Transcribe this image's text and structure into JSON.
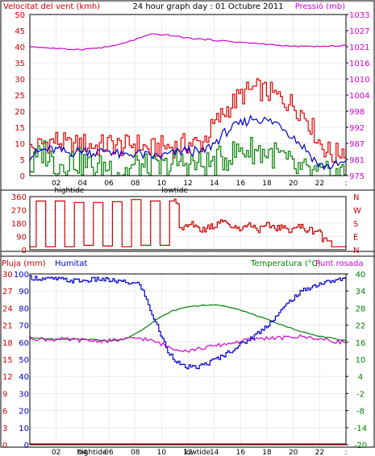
{
  "colors": {
    "background": "#ffffff",
    "border": "#000000",
    "grid": "#c0c0c0",
    "wind_max": "#e00000",
    "wind_avg": "#0000cc",
    "wind_min": "#008000",
    "pressure": "#d000d0",
    "direction": "#cc0000",
    "rain": "#cc0000",
    "humidity": "#0000cc",
    "temperature": "#008000",
    "dewpoint": "#d000d0",
    "left_axis_red": "#cc0000",
    "left_axis_blue": "#0000cc",
    "right_axis_green": "#008000"
  },
  "chart_data": [
    {
      "type": "line",
      "title": "24 hour graph day : 01 Octubre 2011",
      "left_axis_label": "Velocitat del vent (kmh)",
      "right_axis_label": "Pressió (mb)",
      "y_ticks": [
        "50",
        "45",
        "40",
        "35",
        "30",
        "25",
        "20",
        "15",
        "10",
        "5",
        "0"
      ],
      "y2_ticks": [
        "1033",
        "1027",
        "1021",
        "1016",
        "1010",
        "1004",
        "998",
        "992",
        "987",
        "981",
        "975"
      ],
      "ylim": [
        0,
        50
      ],
      "y2lim": [
        975,
        1033
      ],
      "x_ticks": [
        "02",
        "04",
        "06",
        "08",
        "10",
        "12",
        "14",
        "16",
        "18",
        "20",
        "22",
        ":"
      ],
      "x_tide_labels": [
        {
          "hour": 3,
          "text": "hightide"
        },
        {
          "hour": 11,
          "text": "lowtide"
        }
      ],
      "grid": true,
      "series": [
        {
          "key": "max",
          "values": [
            8,
            10,
            11,
            9,
            10,
            9,
            10,
            9,
            10,
            8,
            9,
            9,
            10,
            10,
            16,
            21,
            25,
            27,
            26,
            24,
            22,
            18,
            10,
            6,
            9
          ]
        },
        {
          "key": "avg",
          "values": [
            6,
            8,
            8,
            7,
            8,
            7,
            8,
            6,
            7,
            6,
            6,
            7,
            8,
            7,
            10,
            14,
            16,
            18,
            17,
            16,
            12,
            8,
            3,
            3,
            4
          ]
        },
        {
          "key": "min",
          "values": [
            2,
            8,
            3,
            5,
            4,
            2,
            3,
            1,
            3,
            2,
            2,
            4,
            4,
            3,
            4,
            6,
            8,
            8,
            7,
            6,
            2,
            1,
            0,
            0,
            1
          ]
        },
        {
          "key": "pressure",
          "values": [
            1021.5,
            1021,
            1020.5,
            1020.5,
            1021,
            1022,
            1024,
            1026,
            1025.5,
            1024.5,
            1024,
            1023.5,
            1023,
            1022.5,
            1022,
            1021.5,
            1021.5,
            1021.5,
            1022
          ]
        }
      ]
    },
    {
      "type": "line",
      "left_axis_ticks": [
        "360",
        "270",
        "180",
        "90",
        "0"
      ],
      "right_axis_letters": [
        "N",
        "W",
        "S",
        "E",
        "N"
      ],
      "ylim": [
        0,
        360
      ],
      "grid": true,
      "series": [
        {
          "key": "direction",
          "values": [
            20,
            330,
            20,
            330,
            20,
            320,
            30,
            320,
            25,
            325,
            20,
            340,
            30,
            330,
            30,
            330,
            150,
            170,
            140,
            160,
            200,
            160,
            150,
            170,
            140,
            160,
            150,
            140,
            155,
            135,
            130,
            60,
            20,
            20
          ]
        }
      ]
    },
    {
      "type": "line",
      "left_label_1": "Pluja (mm)",
      "left_label_2": "Humitat",
      "right_label_1": "Temperatura (°C)",
      "right_label_2": "Punt rosada",
      "rain_ticks": [
        "30",
        "27",
        "24",
        "21",
        "18",
        "15",
        "12",
        "9",
        "6",
        "3",
        "0"
      ],
      "humidity_ticks": [
        "100",
        "90",
        "80",
        "70",
        "60",
        "50",
        "40",
        "30",
        "20",
        "10",
        "0"
      ],
      "temp_ticks": [
        "40",
        "34",
        "28",
        "22",
        "16",
        "10",
        "4",
        "-2",
        "-8",
        "-14",
        "-20"
      ],
      "ylim_humidity": [
        0,
        100
      ],
      "ylim_temperature": [
        -20,
        40
      ],
      "x_ticks": [
        "02",
        "04",
        "06",
        "08",
        "10",
        "12",
        "14",
        "16",
        "18",
        "20",
        "22",
        ":"
      ],
      "x_tide_labels": [
        {
          "hour": 3,
          "text": "hightide"
        },
        {
          "hour": 11,
          "text": "lowtide"
        }
      ],
      "grid": true,
      "series": [
        {
          "key": "humidity",
          "values": [
            98,
            97,
            97,
            96,
            96,
            97,
            96,
            95,
            94,
            74,
            55,
            46,
            45,
            48,
            52,
            57,
            62,
            68,
            76,
            85,
            91,
            94,
            96,
            97
          ]
        },
        {
          "key": "temperature",
          "values": [
            17.5,
            17.2,
            17,
            17,
            17,
            16.5,
            17,
            20,
            24,
            27,
            28.5,
            29,
            29,
            28,
            26,
            24,
            22,
            20,
            18.5,
            17.5,
            16.5
          ]
        },
        {
          "key": "dewpoint",
          "values": [
            17.5,
            17,
            17,
            16.8,
            16.5,
            16.5,
            17,
            17.5,
            16,
            14,
            13,
            14,
            15,
            16,
            17,
            17.5,
            17.5,
            18,
            17.5,
            16.5,
            16
          ]
        },
        {
          "key": "rain",
          "values": [
            0,
            0,
            0,
            0,
            0,
            0,
            0,
            0,
            0,
            0,
            0,
            0,
            0,
            0,
            0,
            0,
            0,
            0,
            0,
            0,
            0,
            0,
            0,
            0
          ]
        }
      ]
    }
  ]
}
